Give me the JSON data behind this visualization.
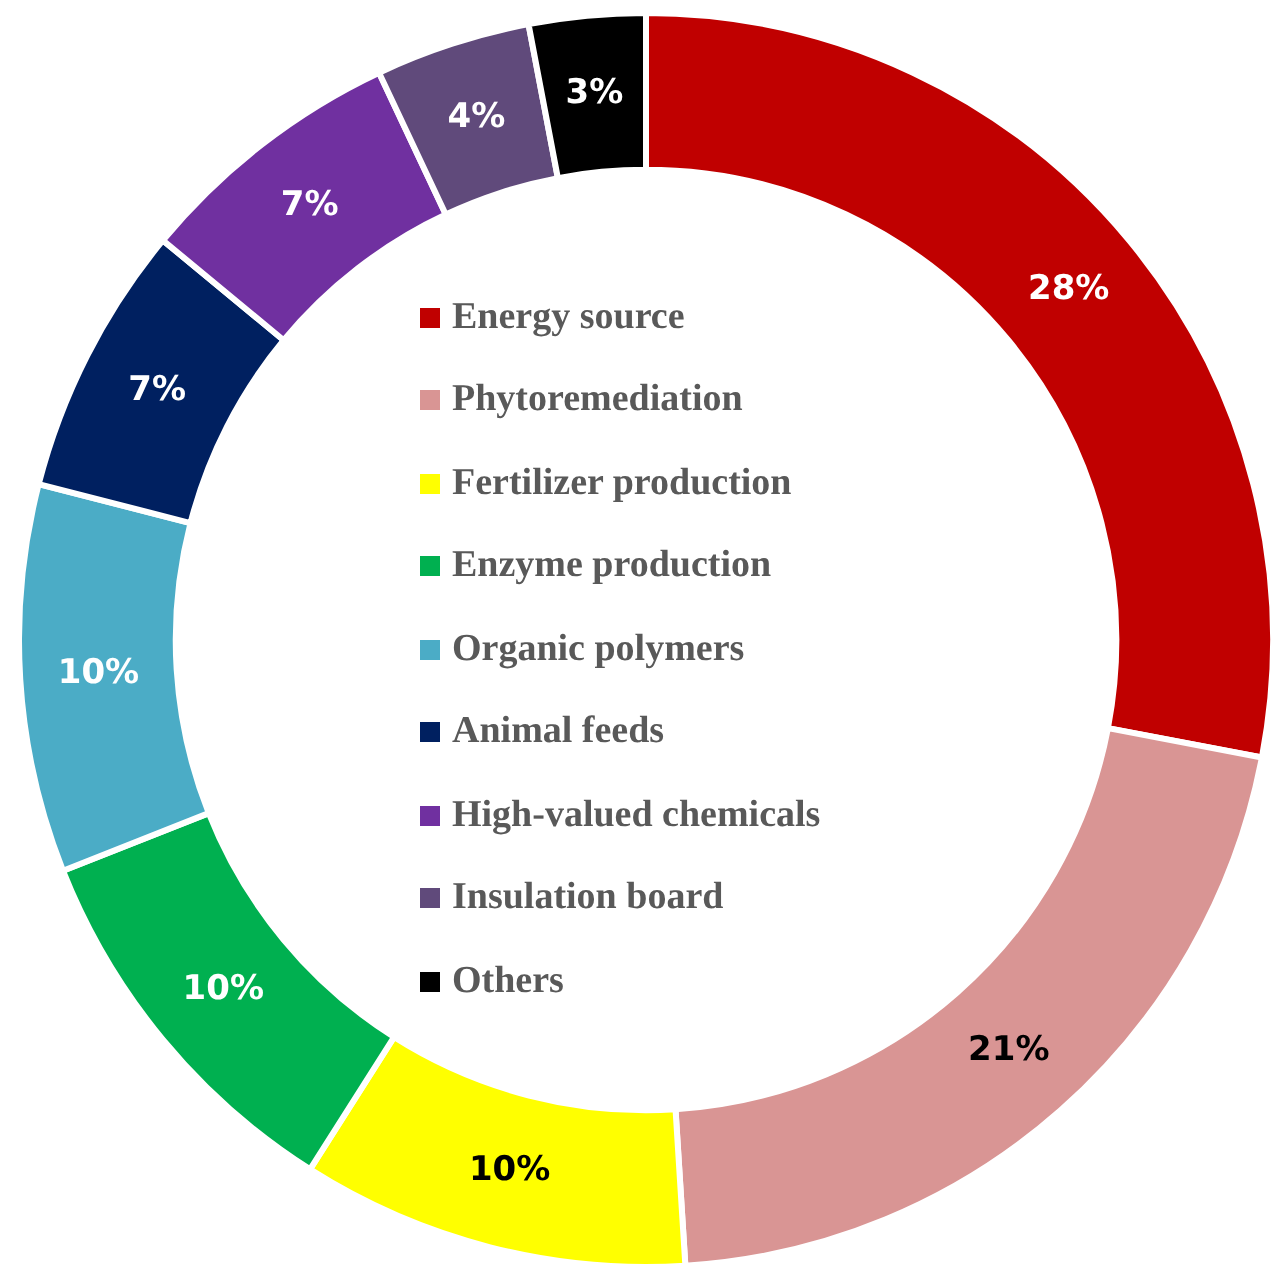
{
  "chart_data": {
    "type": "donut",
    "categories": [
      "Energy source",
      "Phytoremediation",
      "Fertilizer production",
      "Enzyme production",
      "Organic polymers",
      "Animal feeds",
      "High-valued chemicals",
      "Insulation board",
      "Others"
    ],
    "values": [
      28,
      21,
      10,
      10,
      10,
      7,
      7,
      4,
      3
    ],
    "colors": [
      "#c00000",
      "#d99594",
      "#ffff00",
      "#00b050",
      "#4bacc6",
      "#002060",
      "#7030a0",
      "#604a7b",
      "#000000"
    ],
    "value_labels": [
      "28%",
      "21%",
      "10%",
      "10%",
      "10%",
      "7%",
      "7%",
      "4%",
      "3%"
    ],
    "legend": "center"
  }
}
